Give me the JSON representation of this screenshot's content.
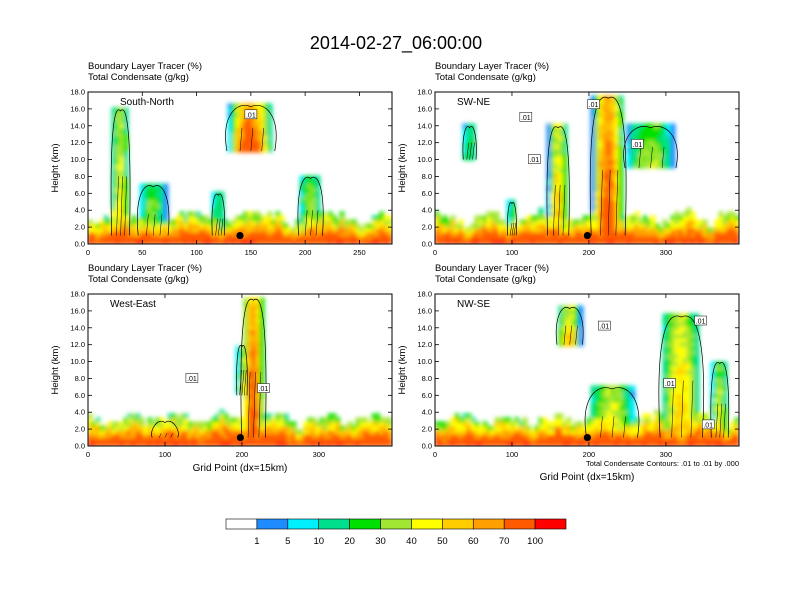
{
  "title": "2014-02-27_06:00:00",
  "colors": {
    "scale": [
      "#ffffff",
      "#1e8cff",
      "#00f0ff",
      "#00e08c",
      "#00e000",
      "#a0e632",
      "#ffff00",
      "#ffcd00",
      "#ffa000",
      "#ff5a00",
      "#ff0000"
    ],
    "axis": "#000000",
    "contour": "#000000"
  },
  "chart_data": [
    {
      "type": "heatmap",
      "name": "South-North",
      "title_line1": "Boundary Layer Tracer   (%)",
      "title_line2": "Total Condensate   (g/kg)",
      "ylabel": "Height (km)",
      "xlabel": "",
      "xlim": [
        0,
        280
      ],
      "ylim": [
        0,
        18
      ],
      "xticks": [
        "0",
        "50",
        "100",
        "150",
        "200",
        "250"
      ],
      "xtick_values": [
        0,
        50,
        100,
        150,
        200,
        250
      ],
      "yticks": [
        "0.0",
        "2.0",
        "4.0",
        "6.0",
        "8.0",
        "10.0",
        "12.0",
        "14.0",
        "16.0",
        "18.0"
      ],
      "contour_labels": [
        {
          "text": ".01",
          "x": 150,
          "y": 15.3
        }
      ],
      "marker": {
        "x": 140,
        "y": 1.0
      },
      "plumes": [
        {
          "x": 30,
          "w": 15,
          "top": 16.0,
          "peak": 50
        },
        {
          "x": 150,
          "w": 40,
          "top": 16.5,
          "peak": 90,
          "base": 11
        },
        {
          "x": 205,
          "w": 20,
          "top": 8.0,
          "peak": 40
        },
        {
          "x": 120,
          "w": 10,
          "top": 6.0,
          "peak": 30
        },
        {
          "x": 60,
          "w": 25,
          "top": 7.0,
          "peak": 35
        }
      ]
    },
    {
      "type": "heatmap",
      "name": "SW-NE",
      "title_line1": "Boundary Layer Tracer   (%)",
      "title_line2": "Total Condensate   (g/kg)",
      "ylabel": "Height (km)",
      "xlabel": "",
      "xlim": [
        0,
        395
      ],
      "ylim": [
        0,
        18
      ],
      "xticks": [
        "0",
        "100",
        "200",
        "300"
      ],
      "xtick_values": [
        0,
        100,
        200,
        300
      ],
      "yticks": [
        "0.0",
        "2.0",
        "4.0",
        "6.0",
        "8.0",
        "10.0",
        "12.0",
        "14.0",
        "16.0",
        "18.0"
      ],
      "contour_labels": [
        {
          "text": ".01",
          "x": 118,
          "y": 15.0
        },
        {
          "text": ".01",
          "x": 206,
          "y": 16.5
        },
        {
          "text": ".01",
          "x": 129,
          "y": 10.0
        },
        {
          "text": ".01",
          "x": 263,
          "y": 11.8
        }
      ],
      "marker": {
        "x": 198,
        "y": 1.0
      },
      "plumes": [
        {
          "x": 225,
          "w": 40,
          "top": 17.5,
          "peak": 90
        },
        {
          "x": 160,
          "w": 25,
          "top": 14.0,
          "peak": 60
        },
        {
          "x": 280,
          "w": 60,
          "top": 14.0,
          "peak": 40,
          "base": 9
        },
        {
          "x": 45,
          "w": 15,
          "top": 14.0,
          "peak": 30,
          "base": 10
        },
        {
          "x": 100,
          "w": 10,
          "top": 5.0,
          "peak": 30
        }
      ]
    },
    {
      "type": "heatmap",
      "name": "West-East",
      "title_line1": "Boundary Layer Tracer   (%)",
      "title_line2": "Total Condensate   (g/kg)",
      "ylabel": "Height (km)",
      "xlabel": "Grid Point (dx=15km)",
      "xlim": [
        0,
        395
      ],
      "ylim": [
        0,
        18
      ],
      "xticks": [
        "0",
        "100",
        "200",
        "300"
      ],
      "xtick_values": [
        0,
        100,
        200,
        300
      ],
      "yticks": [
        "0.0",
        "2.0",
        "4.0",
        "6.0",
        "8.0",
        "10.0",
        "12.0",
        "14.0",
        "16.0",
        "18.0"
      ],
      "contour_labels": [
        {
          "text": ".01",
          "x": 135,
          "y": 8.0
        },
        {
          "text": ".01",
          "x": 228,
          "y": 6.8
        }
      ],
      "marker": {
        "x": 198,
        "y": 1.0
      },
      "plumes": [
        {
          "x": 215,
          "w": 28,
          "top": 17.5,
          "peak": 90
        },
        {
          "x": 200,
          "w": 12,
          "top": 12.0,
          "peak": 40,
          "base": 6
        },
        {
          "x": 100,
          "w": 30,
          "top": 3.0,
          "peak": 25
        }
      ]
    },
    {
      "type": "heatmap",
      "name": "NW-SE",
      "title_line1": "Boundary Layer Tracer   (%)",
      "title_line2": "Total Condensate   (g/kg)",
      "ylabel": "Height (km)",
      "xlabel": "Grid Point (dx=15km)",
      "footnote": "Total Condensate Contours: .01 to .01 by .000",
      "xlim": [
        0,
        395
      ],
      "ylim": [
        0,
        18
      ],
      "xticks": [
        "0",
        "100",
        "200",
        "300"
      ],
      "xtick_values": [
        0,
        100,
        200,
        300
      ],
      "yticks": [
        "0.0",
        "2.0",
        "4.0",
        "6.0",
        "8.0",
        "10.0",
        "12.0",
        "14.0",
        "16.0",
        "18.0"
      ],
      "contour_labels": [
        {
          "text": ".01",
          "x": 220,
          "y": 14.2
        },
        {
          "text": ".01",
          "x": 345,
          "y": 14.8
        },
        {
          "text": ".01",
          "x": 305,
          "y": 7.4
        },
        {
          "text": ".01",
          "x": 355,
          "y": 2.5
        }
      ],
      "marker": {
        "x": 198,
        "y": 1.0
      },
      "plumes": [
        {
          "x": 175,
          "w": 30,
          "top": 16.5,
          "peak": 60,
          "base": 12
        },
        {
          "x": 320,
          "w": 50,
          "top": 15.5,
          "peak": 60
        },
        {
          "x": 230,
          "w": 60,
          "top": 7.0,
          "peak": 50
        },
        {
          "x": 370,
          "w": 20,
          "top": 10.0,
          "peak": 50
        }
      ]
    }
  ],
  "colorbar": {
    "levels": [
      "1",
      "5",
      "10",
      "20",
      "30",
      "40",
      "50",
      "60",
      "70",
      "100"
    ]
  }
}
